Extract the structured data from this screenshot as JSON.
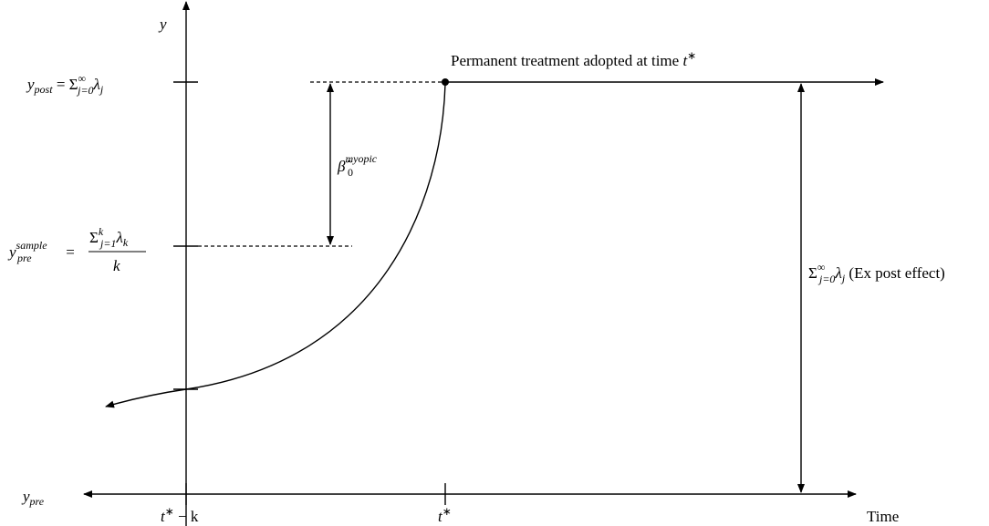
{
  "y_axis_label": "y",
  "x_axis_label": "Time",
  "y_post": {
    "main": "y",
    "sub": "post",
    "equals": " = Σ",
    "sum_sup": "∞",
    "sum_sub": "j=0",
    "term": "λ",
    "term_sub": "j"
  },
  "y_pre_sample": {
    "main": "y",
    "sup": "sample",
    "sub": "pre",
    "equals": " =",
    "num_sum": "Σ",
    "num_sup": "k",
    "num_sub": "j=1",
    "num_term": "λ",
    "num_term_sub": "k",
    "denominator": "k"
  },
  "y_pre": {
    "main": "y",
    "sub": "pre"
  },
  "beta": {
    "main": "β̂",
    "sup": "myopic",
    "sub": "0"
  },
  "treatment_label": {
    "text": "Permanent treatment adopted at time ",
    "main": "t",
    "sup": "∗"
  },
  "effect_label": {
    "sum": "Σ",
    "sum_sup": "∞",
    "sum_sub": "j=0",
    "term": "λ",
    "term_sub": "j",
    "text": " (Ex post effect)"
  },
  "x_ticks": [
    {
      "main": "t",
      "sup": "∗",
      "tail": " − k"
    },
    {
      "main": "t",
      "sup": "∗"
    }
  ]
}
